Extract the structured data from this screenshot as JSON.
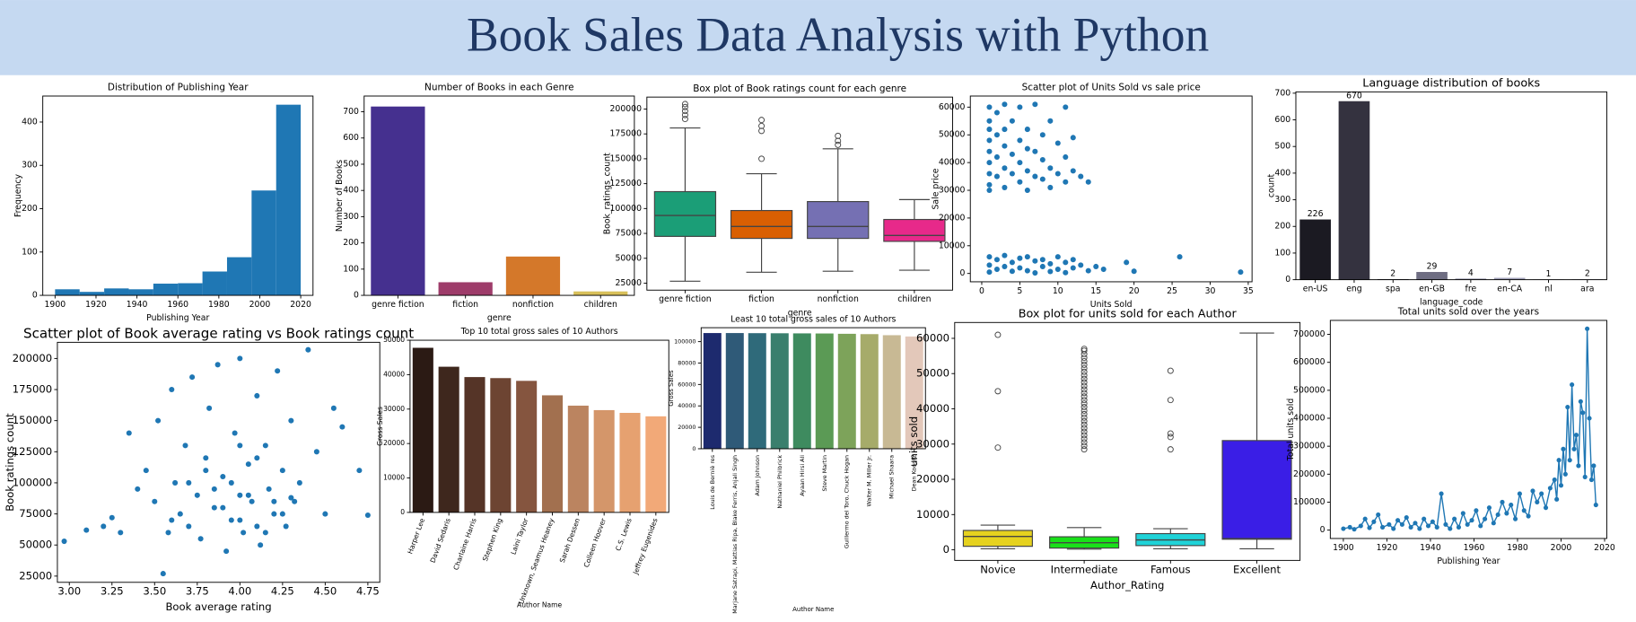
{
  "header": {
    "title": "Book Sales Data Analysis with Python"
  },
  "chart_data": [
    {
      "type": "histogram",
      "title": "Distribution of Publishing Year",
      "x_label": "Publishing Year",
      "y_label": "Frequency",
      "color": "#1f77b4",
      "bins": [
        1900,
        1912,
        1924,
        1936,
        1948,
        1960,
        1972,
        1984,
        1996,
        2008,
        2020
      ],
      "values": [
        14,
        8,
        16,
        14,
        27,
        28,
        55,
        88,
        242,
        440
      ],
      "xlim": [
        1894,
        2026
      ],
      "xticks": [
        1900,
        1920,
        1940,
        1960,
        1980,
        2000,
        2020
      ],
      "ylim": [
        0,
        460
      ],
      "yticks": [
        0,
        100,
        200,
        300,
        400
      ]
    },
    {
      "type": "bar",
      "title": "Number of Books in each Genre",
      "x_label": "genre",
      "y_label": "Number of Books",
      "categories": [
        "genre fiction",
        "fiction",
        "nonfiction",
        "children"
      ],
      "values": [
        720,
        50,
        148,
        15
      ],
      "colors": [
        "#45308f",
        "#9e3c6a",
        "#d4782a",
        "#d8c05a"
      ],
      "ylim": [
        0,
        760
      ],
      "yticks": [
        0,
        100,
        200,
        300,
        400,
        500,
        600,
        700
      ]
    },
    {
      "type": "box",
      "title": "Box plot of Book ratings count for each genre",
      "x_label": "genre",
      "y_label": "Book_ratings_count",
      "categories": [
        "genre fiction",
        "fiction",
        "nonfiction",
        "children"
      ],
      "boxes": [
        {
          "color": "#1b9e77",
          "min": 27000,
          "q1": 72000,
          "median": 93000,
          "q3": 117000,
          "max": 181000,
          "outliers": [
            190000,
            194000,
            198000,
            202000,
            205000
          ]
        },
        {
          "color": "#d95f02",
          "min": 36000,
          "q1": 70000,
          "median": 82000,
          "q3": 98000,
          "max": 135000,
          "outliers": [
            150000,
            178000,
            183000,
            189000
          ]
        },
        {
          "color": "#7570b3",
          "min": 37000,
          "q1": 70000,
          "median": 82000,
          "q3": 107000,
          "max": 160000,
          "outliers": [
            164000,
            168000,
            173000
          ]
        },
        {
          "color": "#e7298a",
          "min": 38000,
          "q1": 67000,
          "median": 73000,
          "q3": 89000,
          "max": 109000,
          "outliers": []
        }
      ],
      "ylim": [
        18000,
        212000
      ],
      "yticks": [
        25000,
        50000,
        75000,
        100000,
        125000,
        150000,
        175000,
        200000
      ]
    },
    {
      "type": "scatter",
      "title": "Scatter plot of Units Sold vs sale price",
      "x_label": "Units Sold",
      "y_label": "Sale price",
      "color": "#1f77b4",
      "x": [
        1,
        1,
        1,
        1,
        1,
        1,
        1,
        1,
        1,
        2,
        2,
        2,
        2,
        3,
        3,
        3,
        3,
        3,
        4,
        4,
        4,
        5,
        5,
        5,
        5,
        6,
        6,
        6,
        6,
        7,
        7,
        7,
        8,
        8,
        8,
        9,
        9,
        9,
        10,
        10,
        11,
        11,
        11,
        12,
        12,
        13,
        14,
        1,
        1,
        1,
        2,
        2,
        3,
        3,
        4,
        4,
        5,
        5,
        6,
        6,
        7,
        7,
        8,
        8,
        9,
        9,
        10,
        10,
        11,
        11,
        12,
        12,
        13,
        14,
        15,
        16,
        19,
        20,
        26,
        34
      ],
      "values": [
        60000,
        55000,
        52000,
        48000,
        44000,
        40000,
        36000,
        32000,
        30000,
        58000,
        50000,
        42000,
        35000,
        61000,
        52000,
        46000,
        38000,
        31000,
        55000,
        43000,
        36000,
        60000,
        48000,
        40000,
        33000,
        52000,
        45000,
        37000,
        30000,
        61000,
        44000,
        35000,
        50000,
        41000,
        34000,
        55000,
        38000,
        31000,
        47000,
        36000,
        60000,
        42000,
        33000,
        49000,
        37000,
        35000,
        33000,
        6000,
        3000,
        500,
        5000,
        1500,
        6500,
        2500,
        4000,
        800,
        5500,
        2000,
        6000,
        1000,
        4500,
        200,
        5000,
        2500,
        3500,
        700,
        6000,
        1500,
        4000,
        300,
        5000,
        2000,
        3000,
        1000,
        2500,
        1500,
        4000,
        800,
        6000,
        500
      ],
      "xlim": [
        -1.5,
        35.5
      ],
      "xticks": [
        0,
        5,
        10,
        15,
        20,
        25,
        30,
        35
      ],
      "ylim": [
        -3000,
        64000
      ],
      "yticks": [
        0,
        10000,
        20000,
        30000,
        40000,
        50000,
        60000
      ]
    },
    {
      "type": "bar",
      "title": "Language distribution of books",
      "x_label": "language_code",
      "y_label": "count",
      "data_labels": true,
      "categories": [
        "en-US",
        "eng",
        "spa",
        "en-GB",
        "fre",
        "en-CA",
        "nl",
        "ara"
      ],
      "values": [
        226,
        670,
        2,
        29,
        4,
        7,
        1,
        2
      ],
      "colors": [
        "#1b1a22",
        "#34323f",
        "#4c4b5c",
        "#6e6d82",
        "#8a8aa0",
        "#a0a0b8",
        "#b8b8cc",
        "#cfcfdd"
      ],
      "ylim": [
        0,
        705
      ],
      "yticks": [
        0,
        100,
        200,
        300,
        400,
        500,
        600,
        700
      ]
    },
    {
      "type": "scatter",
      "title": "Scatter plot of Book average rating vs Book ratings count",
      "x_label": "Book average rating",
      "y_label": "Book ratings count",
      "color": "#1f77b4",
      "x": [
        2.97,
        3.1,
        3.2,
        3.25,
        3.3,
        3.35,
        3.4,
        3.45,
        3.5,
        3.52,
        3.55,
        3.58,
        3.6,
        3.62,
        3.65,
        3.68,
        3.7,
        3.72,
        3.75,
        3.77,
        3.8,
        3.82,
        3.85,
        3.87,
        3.9,
        3.92,
        3.95,
        3.97,
        4.0,
        4.0,
        4.02,
        4.05,
        4.07,
        4.1,
        4.12,
        4.15,
        4.17,
        4.2,
        4.22,
        4.25,
        4.27,
        4.3,
        4.32,
        4.35,
        4.4,
        4.45,
        4.5,
        4.55,
        4.6,
        4.7,
        4.75,
        3.9,
        3.95,
        4.0,
        4.05,
        4.1,
        4.15,
        4.2,
        3.85,
        3.8,
        4.25,
        4.0,
        4.1,
        3.7,
        4.3,
        3.6
      ],
      "values": [
        53000,
        62000,
        65000,
        72000,
        60000,
        140000,
        95000,
        110000,
        85000,
        150000,
        27000,
        60000,
        175000,
        100000,
        75000,
        130000,
        65000,
        185000,
        90000,
        55000,
        120000,
        160000,
        80000,
        195000,
        105000,
        45000,
        70000,
        140000,
        200000,
        90000,
        60000,
        115000,
        85000,
        170000,
        50000,
        130000,
        95000,
        75000,
        190000,
        110000,
        65000,
        150000,
        85000,
        100000,
        207000,
        125000,
        75000,
        160000,
        145000,
        110000,
        74000,
        80000,
        100000,
        70000,
        90000,
        120000,
        60000,
        85000,
        95000,
        110000,
        75000,
        130000,
        65000,
        100000,
        88000,
        70000
      ],
      "xlim": [
        2.93,
        4.82
      ],
      "xticks": [
        {
          "value": 3,
          "label": "3.00"
        },
        3.25,
        {
          "value": 3.5,
          "label": "3.50"
        },
        3.75,
        {
          "value": 4,
          "label": "4.00"
        },
        4.25,
        {
          "value": 4.5,
          "label": "4.50"
        },
        4.75
      ],
      "ylim": [
        20000,
        213000
      ],
      "yticks": [
        25000,
        50000,
        75000,
        100000,
        125000,
        150000,
        175000,
        200000
      ]
    },
    {
      "type": "bar",
      "title": "Top 10 total gross sales of 10 Authors",
      "x_label": "Author Name",
      "y_label": "Gross Sales",
      "categories": [
        "Harper Lee",
        "David Sedaris",
        "Charlaine Harris",
        "Stephen King",
        "Laini Taylor",
        "Unknown, Seamus Heaney",
        "Sarah Dessen",
        "Colleen Hoover",
        "C.S. Lewis",
        "Jeffrey Eugenides"
      ],
      "values": [
        47800,
        42300,
        39300,
        39000,
        38200,
        34000,
        31000,
        29700,
        28900,
        27900
      ],
      "colors": [
        "#2b1a14",
        "#3e271d",
        "#553427",
        "#6d4432",
        "#85553f",
        "#a2704f",
        "#bb8460",
        "#d4966a",
        "#e6a170",
        "#f2a978"
      ],
      "ylim": [
        0,
        50000
      ],
      "yticks": [
        0,
        10000,
        20000,
        30000,
        40000,
        50000
      ]
    },
    {
      "type": "bar",
      "title": "Least 10 total gross sales of 10 Authors",
      "x_label": "Author Name",
      "y_label": "Gross Sales",
      "categories": [
        "Louis de Berniè res",
        "Marjane Satrapi, Mattias Ripa, Blake Ferris, Anjali Singh",
        "Adam Johnson",
        "Nathaniel Philbrick",
        "Ayaan Hirsi Ali",
        "Steve Martin",
        "Guillermo del Toro, Chuck Hogan",
        "Walter M. Miller Jr.",
        "Michael Shaara",
        "Dean Koontz"
      ],
      "values": [
        108000,
        108000,
        107900,
        107800,
        107700,
        107600,
        107300,
        107000,
        106000,
        104800
      ],
      "colors": [
        "#1d2a6e",
        "#2f5a78",
        "#2f6a7a",
        "#3a7f6d",
        "#3e8b5f",
        "#5b9a55",
        "#7da35a",
        "#a6ab6a",
        "#c8b994",
        "#e3c8ba"
      ],
      "ylim": [
        0,
        113000
      ],
      "yticks": [
        0,
        20000,
        40000,
        60000,
        80000,
        100000
      ]
    },
    {
      "type": "box",
      "title": "Box plot for units sold for each Author",
      "x_label": "Author_Rating",
      "y_label": "units sold",
      "categories": [
        "Novice",
        "Intermediate",
        "Famous",
        "Excellent"
      ],
      "boxes": [
        {
          "color": "#e6d21f",
          "min": 300,
          "q1": 1000,
          "median": 3800,
          "q3": 5500,
          "max": 7000,
          "outliers": [
            29000,
            45000,
            61000
          ]
        },
        {
          "color": "#19e019",
          "min": 200,
          "q1": 500,
          "median": 2000,
          "q3": 3700,
          "max": 6300,
          "outliers": [
            28500,
            29500,
            30500,
            31500,
            32500,
            33500,
            34500,
            35500,
            36500,
            37500,
            38500,
            39500,
            40500,
            41500,
            42500,
            43500,
            44500,
            45500,
            46500,
            47500,
            48500,
            49500,
            50500,
            51500,
            52500,
            53500,
            54500,
            55500,
            56500,
            57000
          ]
        },
        {
          "color": "#1fd3d8",
          "min": 300,
          "q1": 1200,
          "median": 2800,
          "q3": 4600,
          "max": 6000,
          "outliers": [
            28500,
            32000,
            33000,
            42500,
            50800
          ]
        },
        {
          "color": "#3a1ee6",
          "min": 300,
          "q1": 3000,
          "median": 3200,
          "q3": 31000,
          "max": 61500,
          "outliers": []
        }
      ],
      "ylim": [
        -3000,
        64500
      ],
      "yticks": [
        0,
        10000,
        20000,
        30000,
        40000,
        50000,
        60000
      ]
    },
    {
      "type": "line",
      "title": "Total units sold over the years",
      "x_label": "Publishing Year",
      "y_label": "Total units sold",
      "color": "#1f77b4",
      "x": [
        1900,
        1903,
        1905,
        1908,
        1910,
        1912,
        1914,
        1916,
        1918,
        1921,
        1923,
        1925,
        1927,
        1929,
        1931,
        1933,
        1935,
        1937,
        1939,
        1941,
        1943,
        1945,
        1947,
        1949,
        1951,
        1953,
        1955,
        1957,
        1959,
        1961,
        1963,
        1965,
        1967,
        1969,
        1971,
        1973,
        1975,
        1977,
        1979,
        1981,
        1983,
        1985,
        1987,
        1989,
        1991,
        1993,
        1995,
        1997,
        1998,
        1999,
        2000,
        2001,
        2002,
        2003,
        2004,
        2005,
        2006,
        2007,
        2008,
        2009,
        2010,
        2011,
        2012,
        2013,
        2014,
        2015,
        2016
      ],
      "values": [
        5000,
        10000,
        3000,
        15000,
        40000,
        8000,
        30000,
        55000,
        10000,
        20000,
        5000,
        35000,
        20000,
        45000,
        10000,
        25000,
        5000,
        40000,
        15000,
        30000,
        10000,
        130000,
        20000,
        5000,
        40000,
        10000,
        60000,
        20000,
        35000,
        70000,
        15000,
        40000,
        80000,
        25000,
        55000,
        100000,
        60000,
        90000,
        40000,
        130000,
        70000,
        50000,
        140000,
        100000,
        130000,
        80000,
        150000,
        180000,
        110000,
        250000,
        160000,
        290000,
        200000,
        440000,
        250000,
        520000,
        290000,
        340000,
        230000,
        460000,
        420000,
        190000,
        720000,
        400000,
        180000,
        230000,
        90000
      ],
      "xlim": [
        1894,
        2021
      ],
      "xticks": [
        1900,
        1920,
        1940,
        1960,
        1980,
        2000,
        2020
      ],
      "ylim": [
        -30000,
        750000
      ],
      "yticks": [
        0,
        100000,
        200000,
        300000,
        400000,
        500000,
        600000,
        700000
      ]
    }
  ]
}
